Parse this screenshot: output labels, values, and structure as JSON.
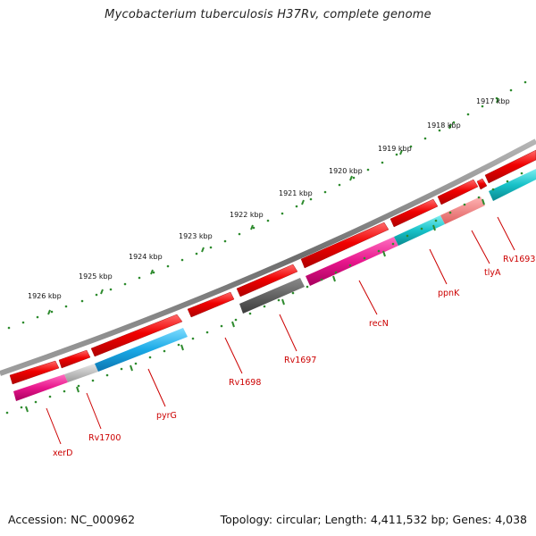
{
  "title": "Mycobacterium tuberculosis H37Rv, complete genome",
  "footer": {
    "accession": "Accession: NC_000962",
    "summary": "Topology: circular; Length: 4,411,532 bp; Genes: 4,038"
  },
  "scale_labels": [
    "1917 kbp",
    "1918 kbp",
    "1919 kbp",
    "1920 kbp",
    "1921 kbp",
    "1922 kbp",
    "1923 kbp",
    "1924 kbp",
    "1925 kbp",
    "1926 kbp"
  ],
  "gene_labels": [
    "xerD",
    "Rv1700",
    "pyrG",
    "Rv1698",
    "Rv1697",
    "recN",
    "ppnK",
    "tlyA",
    "Rv1693"
  ],
  "colors": {
    "backbone": "#7a7a7a",
    "forward_gene": "#ee0000",
    "magenta": "#e8168c",
    "light_gray": "#bdbdbd",
    "sky_blue": "#1aa9e6",
    "dark_gray": "#5a5a5a",
    "teal": "#17c1c8",
    "salmon": "#f07f7f",
    "tick_green": "#2e8b2e",
    "label_red": "#cc0000"
  }
}
